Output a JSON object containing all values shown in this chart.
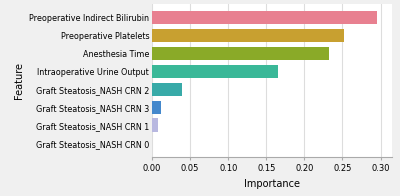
{
  "features": [
    "Graft Steatosis_NASH CRN 0",
    "Graft Steatosis_NASH CRN 1",
    "Graft Steatosis_NASH CRN 3",
    "Graft Steatosis_NASH CRN 2",
    "Intraoperative Urine Output",
    "Anesthesia Time",
    "Preoperative Platelets",
    "Preoperative Indirect Bilirubin"
  ],
  "importance": [
    0.0005,
    0.008,
    0.012,
    0.04,
    0.165,
    0.232,
    0.252,
    0.295
  ],
  "colors": [
    "#c8c0e0",
    "#b8b8e0",
    "#4488cc",
    "#38aaa8",
    "#3ab898",
    "#8aaa28",
    "#c8a030",
    "#e88090"
  ],
  "xlabel": "Importance",
  "ylabel": "Feature",
  "xlim": [
    0,
    0.315
  ],
  "xticks": [
    0.0,
    0.05,
    0.1,
    0.15,
    0.2,
    0.25,
    0.3
  ],
  "fig_bg": "#f0f0f0",
  "ax_bg": "#ffffff",
  "bar_height": 0.75
}
